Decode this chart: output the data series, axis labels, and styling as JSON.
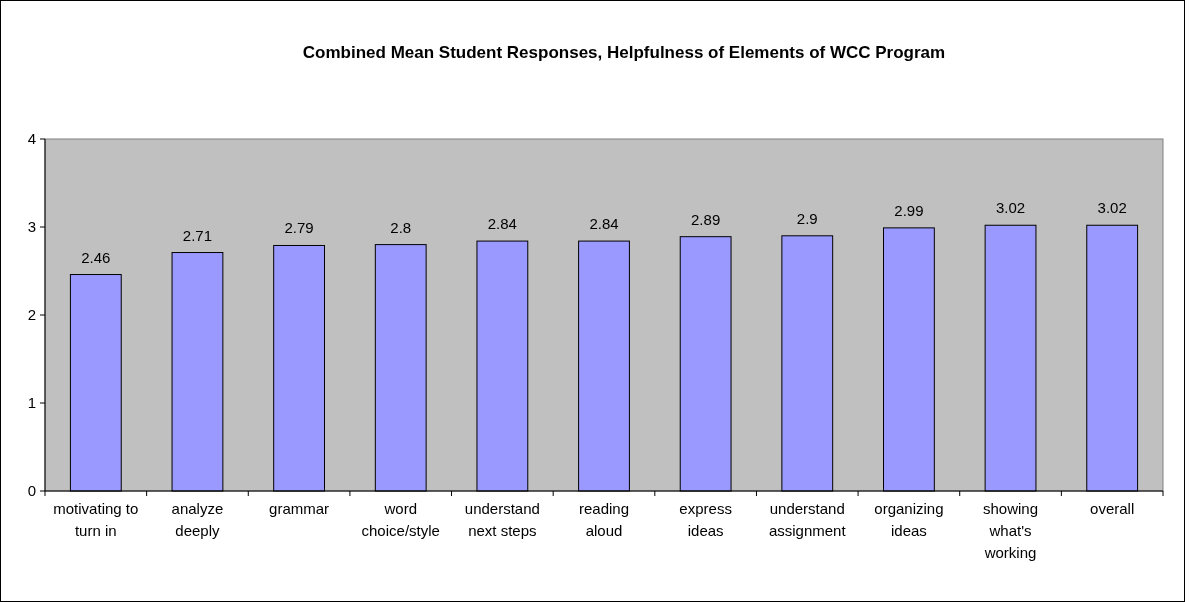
{
  "chart_data": {
    "type": "bar",
    "title": "Combined  Mean Student Responses, Helpfulness of Elements of WCC Program",
    "categories": [
      "motivating to turn in",
      "analyze deeply",
      "grammar",
      "word choice/style",
      "understand next steps",
      "reading aloud",
      "express ideas",
      "understand assignment",
      "organizing ideas",
      "showing what's working",
      "overall"
    ],
    "values": [
      2.46,
      2.71,
      2.79,
      2.8,
      2.84,
      2.84,
      2.89,
      2.9,
      2.99,
      3.02,
      3.02
    ],
    "color": "#9999ff",
    "ylim": [
      0,
      4
    ],
    "yticks": [
      0,
      1,
      2,
      3,
      4
    ],
    "data_labels": true
  }
}
